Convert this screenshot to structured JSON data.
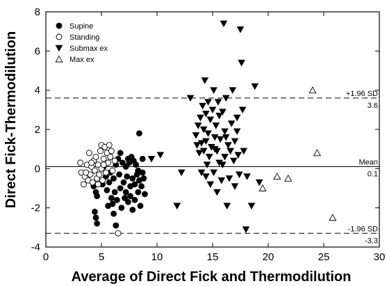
{
  "chart_data": {
    "type": "scatter",
    "title": "",
    "xlabel": "Average of Direct Fick and Thermodilution",
    "ylabel": "Direct Fick-Thermodilution",
    "xlim": [
      0,
      30
    ],
    "ylim": [
      -4,
      8
    ],
    "x_ticks": [
      "0",
      "5",
      "10",
      "15",
      "20",
      "25",
      "30"
    ],
    "y_ticks": [
      "-4",
      "-2",
      "0",
      "2",
      "4",
      "6",
      "8"
    ],
    "grid": false,
    "legend_position": "top-left",
    "reference_lines": [
      {
        "name": "upper",
        "value": 3.6,
        "style": "dashed",
        "label_top": "+1.96 SD",
        "label_bottom": "3.6"
      },
      {
        "name": "mean",
        "value": 0.1,
        "style": "solid",
        "label_top": "Mean",
        "label_bottom": "0.1"
      },
      {
        "name": "lower",
        "value": -3.3,
        "style": "dashed",
        "label_top": "-1.96 SD",
        "label_bottom": "-3.3"
      }
    ],
    "series": [
      {
        "name": "Supine",
        "marker": "filled-circle",
        "points": [
          [
            4.3,
            -0.9
          ],
          [
            4.5,
            -1.2
          ],
          [
            4.4,
            -2.2
          ],
          [
            4.5,
            -2.5
          ],
          [
            4.6,
            -2.8
          ],
          [
            4.6,
            -1.4
          ],
          [
            5.1,
            -0.8
          ],
          [
            5.2,
            0.1
          ],
          [
            5.4,
            -0.4
          ],
          [
            5.5,
            -1.1
          ],
          [
            5.6,
            -1.9
          ],
          [
            5.7,
            -0.7
          ],
          [
            5.8,
            -0.2
          ],
          [
            5.9,
            -1.5
          ],
          [
            6.0,
            -1.8
          ],
          [
            6.1,
            -2.3
          ],
          [
            6.1,
            -0.5
          ],
          [
            6.2,
            -1.2
          ],
          [
            6.3,
            0.2
          ],
          [
            6.3,
            -2.9
          ],
          [
            6.4,
            -1.6
          ],
          [
            6.5,
            0.5
          ],
          [
            6.6,
            -0.3
          ],
          [
            6.7,
            0.8
          ],
          [
            6.7,
            -1.0
          ],
          [
            6.8,
            -2.0
          ],
          [
            6.9,
            0.3
          ],
          [
            7.0,
            -0.7
          ],
          [
            7.1,
            -1.5
          ],
          [
            7.2,
            0.1
          ],
          [
            7.2,
            -1.2
          ],
          [
            7.3,
            -0.4
          ],
          [
            7.4,
            0.5
          ],
          [
            7.4,
            -1.7
          ],
          [
            7.5,
            0.3
          ],
          [
            7.6,
            -0.9
          ],
          [
            7.6,
            -1.4
          ],
          [
            7.7,
            0.6
          ],
          [
            7.8,
            -0.5
          ],
          [
            7.8,
            -2.1
          ],
          [
            7.9,
            0.4
          ],
          [
            8.0,
            -0.8
          ],
          [
            8.0,
            -1.6
          ],
          [
            8.1,
            0.2
          ],
          [
            8.2,
            -0.3
          ],
          [
            8.3,
            -1.2
          ],
          [
            8.4,
            1.8
          ],
          [
            8.4,
            -0.6
          ],
          [
            8.5,
            -1.9
          ],
          [
            8.6,
            -0.9
          ],
          [
            8.7,
            -0.2
          ],
          [
            8.8,
            -0.5
          ],
          [
            8.9,
            -1.3
          ],
          [
            8.7,
            0.5
          ],
          [
            8.3,
            -0.1
          ]
        ]
      },
      {
        "name": "Standing",
        "marker": "open-circle",
        "points": [
          [
            3.1,
            0.3
          ],
          [
            3.2,
            -0.2
          ],
          [
            3.4,
            -0.8
          ],
          [
            3.5,
            -0.4
          ],
          [
            3.7,
            0.2
          ],
          [
            3.8,
            -0.6
          ],
          [
            3.9,
            0.8
          ],
          [
            4.0,
            -0.3
          ],
          [
            4.1,
            0.1
          ],
          [
            4.2,
            -0.7
          ],
          [
            4.3,
            0.4
          ],
          [
            4.4,
            -0.1
          ],
          [
            4.5,
            0.6
          ],
          [
            4.6,
            -0.5
          ],
          [
            4.7,
            0.2
          ],
          [
            4.8,
            -0.3
          ],
          [
            4.9,
            0.9
          ],
          [
            5.0,
            1.2
          ],
          [
            5.0,
            0.0
          ],
          [
            5.1,
            -0.6
          ],
          [
            5.2,
            0.5
          ],
          [
            5.3,
            1.1
          ],
          [
            5.4,
            -0.2
          ],
          [
            5.5,
            0.8
          ],
          [
            5.6,
            0.3
          ],
          [
            5.7,
            1.2
          ],
          [
            5.8,
            0.6
          ],
          [
            5.9,
            0.9
          ],
          [
            6.0,
            -0.1
          ],
          [
            6.2,
            0.4
          ],
          [
            3.6,
            -0.2
          ],
          [
            4.1,
            0.3
          ],
          [
            4.7,
            -0.8
          ],
          [
            5.2,
            0.2
          ],
          [
            6.5,
            -3.3
          ]
        ]
      },
      {
        "name": "Submax ex",
        "marker": "filled-down-triangle",
        "points": [
          [
            9.5,
            0.5
          ],
          [
            10.3,
            0.7
          ],
          [
            11.8,
            -1.9
          ],
          [
            12.2,
            -0.2
          ],
          [
            13.0,
            3.6
          ],
          [
            13.5,
            1.7
          ],
          [
            13.6,
            1.2
          ],
          [
            13.7,
            2.2
          ],
          [
            13.8,
            0.8
          ],
          [
            13.9,
            2.6
          ],
          [
            14.0,
            -0.2
          ],
          [
            14.0,
            1.3
          ],
          [
            14.1,
            3.2
          ],
          [
            14.2,
            0.9
          ],
          [
            14.2,
            2.0
          ],
          [
            14.3,
            4.5
          ],
          [
            14.4,
            -0.4
          ],
          [
            14.4,
            1.4
          ],
          [
            14.5,
            0.2
          ],
          [
            14.6,
            3.4
          ],
          [
            14.6,
            1.8
          ],
          [
            14.7,
            0.6
          ],
          [
            14.8,
            2.5
          ],
          [
            14.8,
            -0.8
          ],
          [
            14.9,
            1.1
          ],
          [
            15.0,
            3.0
          ],
          [
            15.1,
            4.0
          ],
          [
            15.1,
            -0.2
          ],
          [
            15.2,
            1.6
          ],
          [
            15.3,
            2.2
          ],
          [
            15.4,
            0.9
          ],
          [
            15.4,
            -1.2
          ],
          [
            15.5,
            3.4
          ],
          [
            15.6,
            2.7
          ],
          [
            15.6,
            0.3
          ],
          [
            15.7,
            1.5
          ],
          [
            15.8,
            -0.6
          ],
          [
            15.9,
            2.9
          ],
          [
            16.0,
            7.4
          ],
          [
            16.1,
            0.6
          ],
          [
            16.1,
            1.9
          ],
          [
            16.2,
            3.6
          ],
          [
            16.3,
            -1.9
          ],
          [
            16.4,
            1.2
          ],
          [
            16.5,
            -0.5
          ],
          [
            16.6,
            0.9
          ],
          [
            16.7,
            2.3
          ],
          [
            16.8,
            4.0
          ],
          [
            16.9,
            0.4
          ],
          [
            17.0,
            -0.9
          ],
          [
            17.0,
            1.4
          ],
          [
            17.2,
            2.6
          ],
          [
            17.3,
            0.7
          ],
          [
            17.4,
            -0.3
          ],
          [
            17.5,
            7.1
          ],
          [
            17.6,
            5.4
          ],
          [
            17.7,
            3.0
          ],
          [
            17.8,
            0.9
          ],
          [
            18.0,
            -3.1
          ],
          [
            18.1,
            -0.4
          ],
          [
            18.5,
            -1.9
          ],
          [
            18.8,
            4.2
          ],
          [
            19.2,
            -0.7
          ],
          [
            15.2,
            1.0
          ],
          [
            16.2,
            1.6
          ],
          [
            17.2,
            1.9
          ],
          [
            14.4,
            2.8
          ],
          [
            15.9,
            0.2
          ]
        ]
      },
      {
        "name": "Max ex",
        "marker": "open-up-triangle",
        "points": [
          [
            19.5,
            -1.0
          ],
          [
            20.8,
            -0.4
          ],
          [
            21.8,
            -0.5
          ],
          [
            24.0,
            4.0
          ],
          [
            24.4,
            0.8
          ],
          [
            25.8,
            -2.5
          ]
        ]
      }
    ]
  }
}
